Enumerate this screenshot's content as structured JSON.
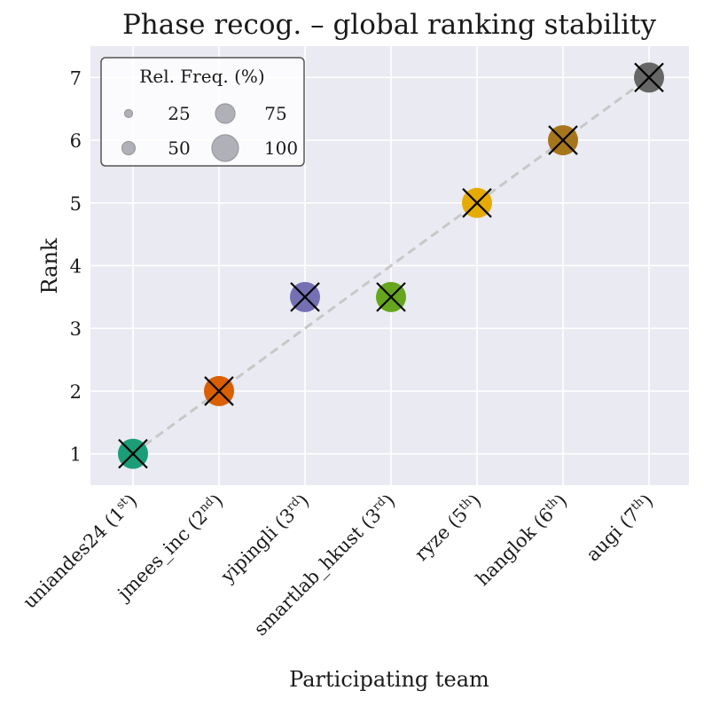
{
  "chart_data": {
    "type": "scatter",
    "title": "Phase recog. – global ranking stability",
    "xlabel": "Participating team",
    "ylabel": "Rank",
    "ylim": [
      0.5,
      7.5
    ],
    "yticks": [
      "1",
      "2",
      "3",
      "4",
      "5",
      "6",
      "7"
    ],
    "grid": true,
    "categories": [
      {
        "name": "uniandes24",
        "place": "1",
        "suffix": "st"
      },
      {
        "name": "jmees_inc",
        "place": "2",
        "suffix": "nd"
      },
      {
        "name": "yipingli",
        "place": "3",
        "suffix": "rd"
      },
      {
        "name": "smartlab_hkust",
        "place": "3",
        "suffix": "rd"
      },
      {
        "name": "ryze",
        "place": "5",
        "suffix": "th"
      },
      {
        "name": "hanglok",
        "place": "6",
        "suffix": "th"
      },
      {
        "name": "augi",
        "place": "7",
        "suffix": "th"
      }
    ],
    "points": [
      {
        "team": "uniandes24",
        "rank": 1,
        "freq": 100,
        "color": "#1b9e77"
      },
      {
        "team": "jmees_inc",
        "rank": 2,
        "freq": 100,
        "color": "#d95f02"
      },
      {
        "team": "yipingli",
        "rank": 3.5,
        "freq": 100,
        "color": "#7570b3"
      },
      {
        "team": "smartlab_hkust",
        "rank": 3.5,
        "freq": 100,
        "color": "#66a61e"
      },
      {
        "team": "ryze",
        "rank": 5,
        "freq": 100,
        "color": "#e6ab02"
      },
      {
        "team": "hanglok",
        "rank": 6,
        "freq": 100,
        "color": "#a6761d"
      },
      {
        "team": "augi",
        "rank": 7,
        "freq": 100,
        "color": "#666666"
      }
    ],
    "reference_line": {
      "from": [
        1,
        1
      ],
      "to": [
        7,
        7
      ],
      "style": "dashed",
      "color": "#c8c8c8"
    },
    "marker_overlay": "x",
    "legend": {
      "title": "Rel. Freq. (%)",
      "position": "top-left",
      "entries": [
        "25",
        "50",
        "75",
        "100"
      ]
    }
  }
}
